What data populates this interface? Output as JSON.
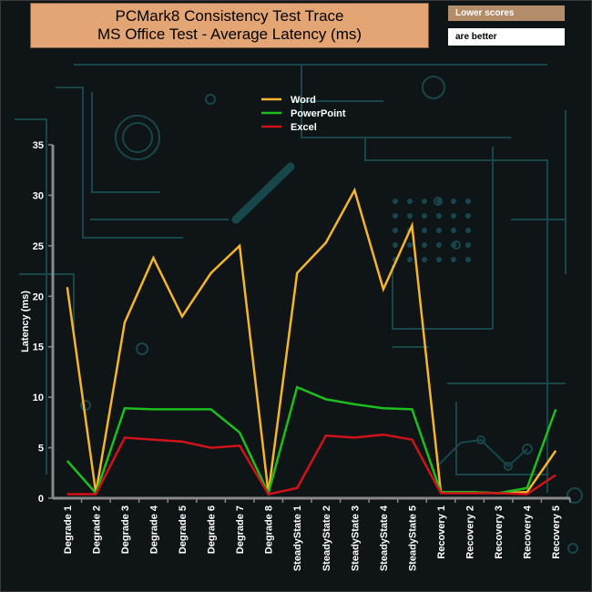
{
  "title_line1": "PCMark8 Consistency Test Trace",
  "title_line2": "MS Office Test -  Average Latency (ms)",
  "note_line1": "Lower scores",
  "note_line2": "are better",
  "colors": {
    "background": "#0f1416",
    "circuit": "#17474b",
    "axis": "#8a8a8a",
    "text": "#ffffff",
    "word": "#f5b52c",
    "powerpoint": "#1dbe1d",
    "excel": "#d0121a"
  },
  "chart_data": {
    "type": "line",
    "title": "PCMark8 Consistency Test Trace",
    "subtitle": "MS Office Test -  Average Latency (ms)",
    "xlabel": "",
    "ylabel": "Latency (ms)",
    "ylim": [
      0,
      35
    ],
    "yticks": [
      0,
      5,
      10,
      15,
      20,
      25,
      30,
      35
    ],
    "grid": false,
    "legend_position": "top-center",
    "categories": [
      "Degrade 1",
      "Degrade 2",
      "Degrade 3",
      "Degrade 4",
      "Degrade 5",
      "Degrade 6",
      "Degrade 7",
      "Degrade 8",
      "SteadyState 1",
      "SteadyState 2",
      "SteadyState 3",
      "SteadyState 4",
      "SteadyState 5",
      "Recovery 1",
      "Recovery 2",
      "Recovery 3",
      "Recovery 4",
      "Recovery 5"
    ],
    "series": [
      {
        "name": "Word",
        "color": "#f5b52c",
        "values": [
          20.9,
          0.5,
          17.4,
          23.8,
          18.0,
          22.3,
          25.0,
          0.5,
          22.3,
          25.3,
          30.5,
          20.7,
          27.0,
          0.6,
          0.6,
          0.5,
          0.6,
          4.7
        ]
      },
      {
        "name": "PowerPoint",
        "color": "#1dbe1d",
        "values": [
          3.7,
          0.5,
          8.9,
          8.8,
          8.8,
          8.8,
          6.5,
          0.5,
          11.0,
          9.8,
          9.3,
          8.9,
          8.8,
          0.6,
          0.6,
          0.5,
          1.0,
          8.8
        ]
      },
      {
        "name": "Excel",
        "color": "#d0121a",
        "values": [
          0.4,
          0.4,
          6.0,
          5.8,
          5.6,
          5.0,
          5.2,
          0.4,
          1.0,
          6.2,
          6.0,
          6.3,
          5.8,
          0.5,
          0.5,
          0.5,
          0.4,
          2.3
        ]
      }
    ]
  }
}
